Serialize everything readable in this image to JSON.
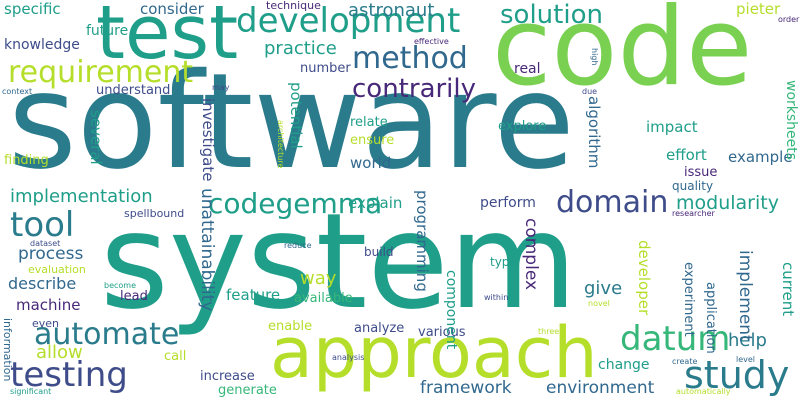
{
  "words": {
    "software": "software",
    "system": "system",
    "code": "code",
    "test": "test",
    "approach": "approach",
    "development": "development",
    "requirement": "requirement",
    "method": "method",
    "solution": "solution",
    "study": "study",
    "datum": "datum",
    "testing": "testing",
    "automate": "automate",
    "tool": "tool",
    "codegemma": "codegemma",
    "domain": "domain",
    "contrarily": "contrarily",
    "modularity": "modularity",
    "unattainability": "unattainability",
    "implementation": "implementation",
    "astronaut": "astronaut",
    "practice": "practice",
    "process": "process",
    "framework": "framework",
    "environment": "environment",
    "implement": "implement",
    "complex": "complex",
    "programming": "programming",
    "investigate": "investigate",
    "potential": "potential",
    "algorithm": "algorithm",
    "developer": "developer",
    "application": "application",
    "experiment": "experiment",
    "worksheets": "worksheets",
    "current": "current",
    "pieter": "pieter",
    "specific": "specific",
    "consider": "consider",
    "technique": "technique",
    "future": "future",
    "knowledge": "knowledge",
    "understand": "understand",
    "number": "number",
    "real": "real",
    "relate": "relate",
    "ensure": "ensure",
    "explore": "explore",
    "impact": "impact",
    "effort": "effort",
    "example": "example",
    "world": "world",
    "issue": "issue",
    "quality": "quality",
    "explain": "explain",
    "perform": "perform",
    "several": "several",
    "finding": "finding",
    "describe": "describe",
    "machine": "machine",
    "lead": "lead",
    "way": "way",
    "give": "give",
    "help": "help",
    "feature": "feature",
    "allow": "allow",
    "call": "call",
    "enable": "enable",
    "analyze": "analyze",
    "various": "various",
    "component": "component",
    "change": "change",
    "increase": "increase",
    "generate": "generate",
    "available": "available",
    "build": "build",
    "type": "type",
    "spellbound": "spellbound",
    "evaluation": "evaluation",
    "even": "even",
    "information": "information",
    "significant": "significant",
    "context": "context",
    "effective": "effective",
    "high": "high",
    "order": "order",
    "may": "may",
    "due": "due",
    "architecture": "architecture",
    "dataset": "dataset",
    "become": "become",
    "reduce": "reduce",
    "analysis": "analysis",
    "within": "within",
    "novel": "novel",
    "three": "three",
    "create": "create",
    "level": "level",
    "automatically": "automatically",
    "researcher": "researcher"
  }
}
